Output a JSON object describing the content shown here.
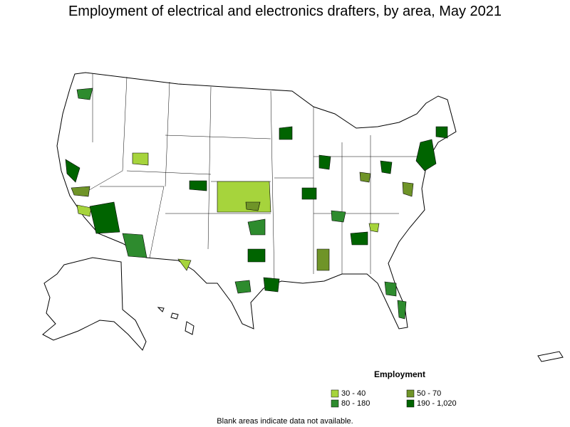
{
  "title": "Employment of electrical and electronics drafters, by area, May 2021",
  "legend": {
    "title": "Employment",
    "items": [
      {
        "label": "30 - 40",
        "color": "#a6d43c"
      },
      {
        "label": "50 - 70",
        "color": "#6f9428"
      },
      {
        "label": "80 - 180",
        "color": "#2e8b2e"
      },
      {
        "label": "190 - 1,020",
        "color": "#006400"
      }
    ]
  },
  "footnote": "Blank areas indicate data not available."
}
